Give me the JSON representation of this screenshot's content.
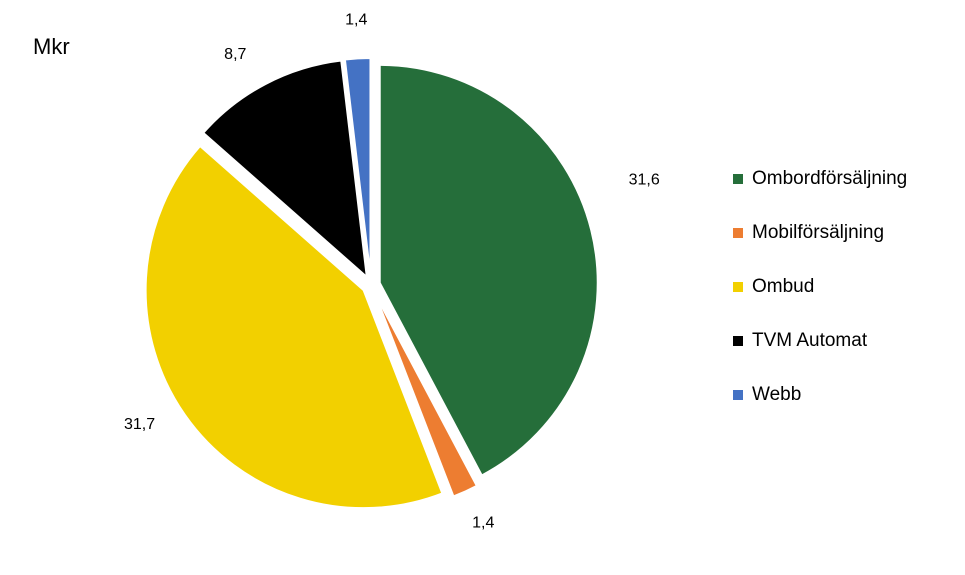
{
  "unit_label": "Mkr",
  "chart_data": {
    "type": "pie",
    "title": "",
    "legend_position": "right",
    "slices": [
      {
        "label": "Ombordförsäljning",
        "value": 31.6,
        "value_label": "31,6",
        "color": "#256e3a"
      },
      {
        "label": "Mobilförsäljning",
        "value": 1.4,
        "value_label": "1,4",
        "color": "#ed7d31"
      },
      {
        "label": "Ombud",
        "value": 31.7,
        "value_label": "31,7",
        "color": "#f2d000"
      },
      {
        "label": "TVM Automat",
        "value": 8.7,
        "value_label": "8,7",
        "color": "#000000"
      },
      {
        "label": "Webb",
        "value": 1.4,
        "value_label": "1,4",
        "color": "#4472c4"
      }
    ]
  }
}
